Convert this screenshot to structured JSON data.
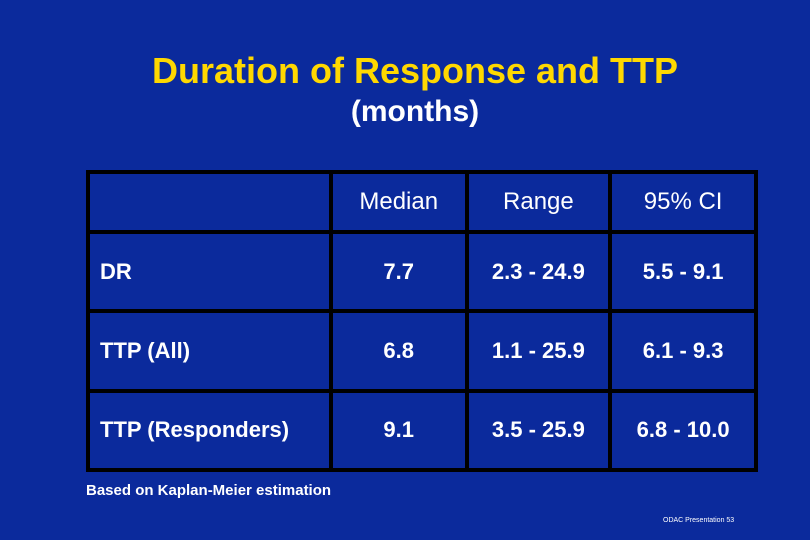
{
  "slide": {
    "title": "Duration of Response and TTP",
    "subtitle": "(months)",
    "footnote": "Based on Kaplan-Meier estimation",
    "slide_ref": "ODAC Presentation 53"
  },
  "table": {
    "headers": [
      "",
      "Median",
      "Range",
      "95% CI"
    ],
    "rows": [
      {
        "label": "DR",
        "median": "7.7",
        "range": "2.3 - 24.9",
        "ci": "5.5 - 9.1"
      },
      {
        "label": "TTP (All)",
        "median": "6.8",
        "range": "1.1 - 25.9",
        "ci": "6.1 - 9.3"
      },
      {
        "label": "TTP (Responders)",
        "median": "9.1",
        "range": "3.5 - 25.9",
        "ci": "6.8 - 10.0"
      }
    ]
  },
  "colors": {
    "background": "#0b2a9c",
    "title": "#ffd800",
    "text": "#ffffff",
    "grid": "#000000"
  }
}
